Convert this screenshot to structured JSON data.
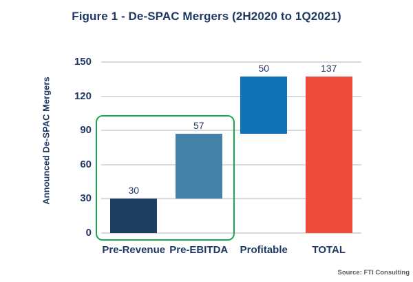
{
  "figure": {
    "title": "Figure 1 - De-SPAC Mergers (2H2020 to 1Q2021)",
    "source": "Source: FTI Consulting"
  },
  "chart_data": {
    "type": "bar",
    "subtype": "floating-segment (waterfall-style)",
    "title": "Figure 1 - De-SPAC Mergers (2H2020 to 1Q2021)",
    "ylabel": "Announced De-SPAC Mergers",
    "xlabel": "",
    "categories": [
      "Pre-Revenue",
      "Pre-EBITDA",
      "Profitable",
      "TOTAL"
    ],
    "values": [
      30,
      57,
      50,
      137
    ],
    "bar_bases": [
      0,
      30,
      87,
      0
    ],
    "value_labels": [
      "30",
      "57",
      "50",
      "137"
    ],
    "bar_colors": [
      "#1c3f63",
      "#4682a8",
      "#0e73b8",
      "#ee4c3a"
    ],
    "ylim": [
      0,
      150
    ],
    "yticks": [
      0,
      30,
      60,
      90,
      120,
      150
    ],
    "grid": true,
    "legend_position": "none",
    "highlight_box": {
      "categories": [
        "Pre-Revenue",
        "Pre-EBITDA"
      ],
      "color": "#17a94f"
    },
    "colors": {
      "text_navy": "#1f3864",
      "gridline": "#d9d9d9",
      "highlight_green": "#17a94f",
      "source_gray": "#5a5a5a"
    },
    "source": "Source: FTI Consulting"
  }
}
